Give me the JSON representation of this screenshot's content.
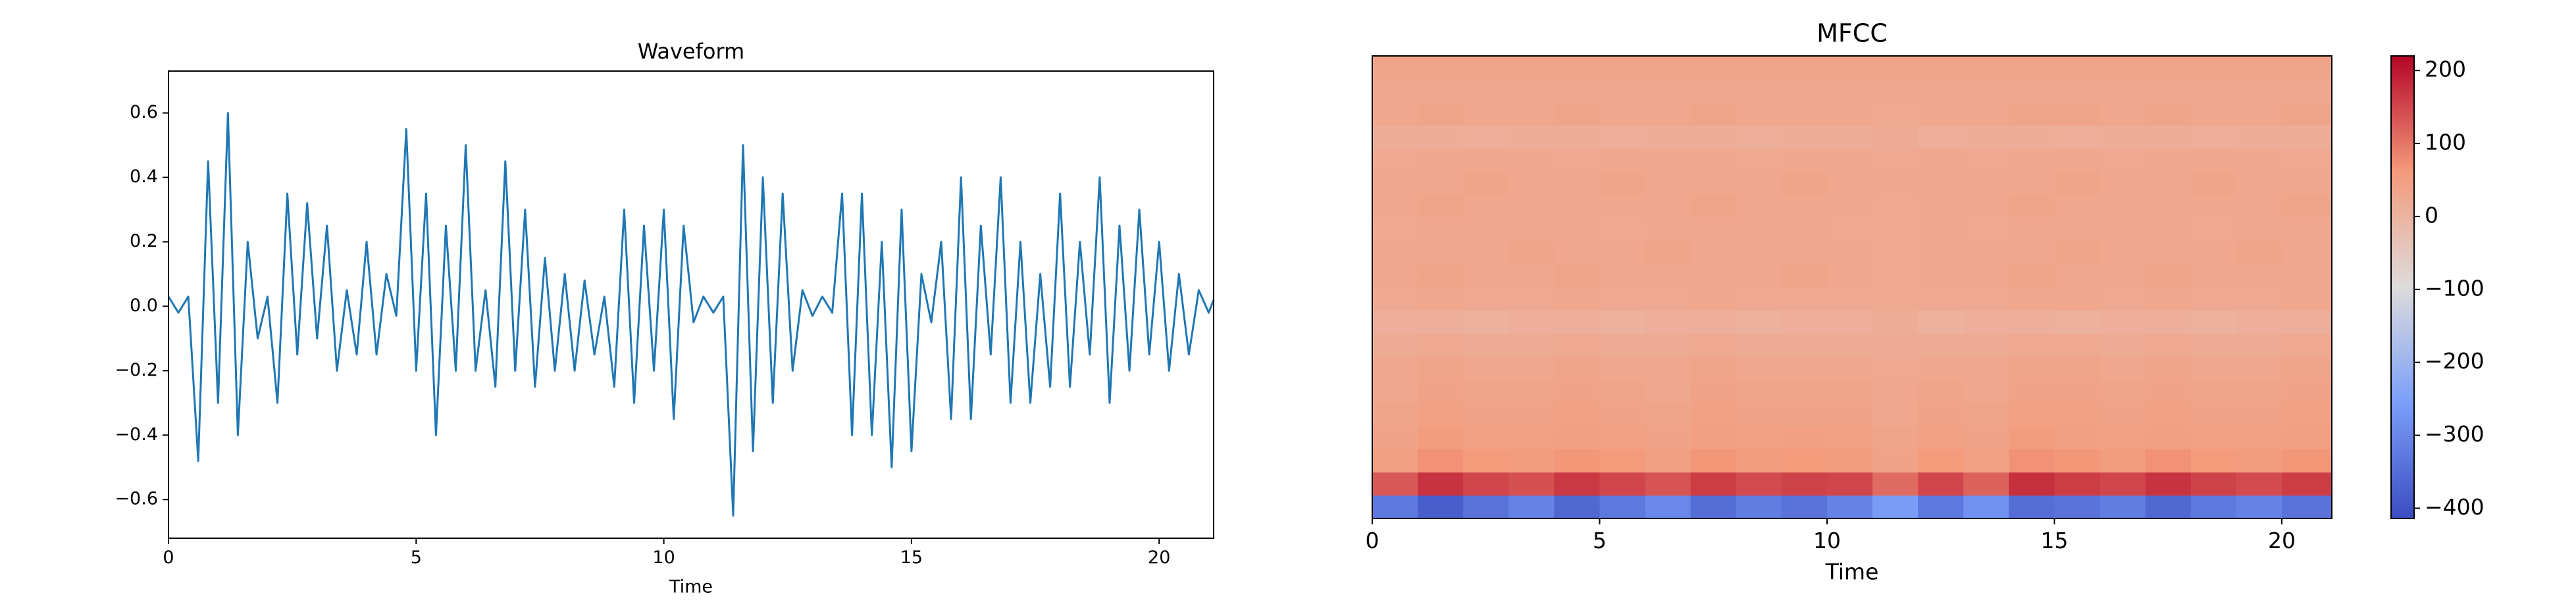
{
  "chart_data": [
    {
      "type": "line",
      "title": "Waveform",
      "xlabel": "Time",
      "color": "#1f77b4",
      "x": [
        0,
        0.2,
        0.4,
        0.6,
        0.8,
        1.0,
        1.2,
        1.4,
        1.6,
        1.8,
        2.0,
        2.2,
        2.4,
        2.6,
        2.8,
        3.0,
        3.2,
        3.4,
        3.6,
        3.8,
        4.0,
        4.2,
        4.4,
        4.6,
        4.8,
        5.0,
        5.2,
        5.4,
        5.6,
        5.8,
        6.0,
        6.2,
        6.4,
        6.6,
        6.8,
        7.0,
        7.2,
        7.4,
        7.6,
        7.8,
        8.0,
        8.2,
        8.4,
        8.6,
        8.8,
        9.0,
        9.2,
        9.4,
        9.6,
        9.8,
        10.0,
        10.2,
        10.4,
        10.6,
        10.8,
        11.0,
        11.2,
        11.4,
        11.6,
        11.8,
        12.0,
        12.2,
        12.4,
        12.6,
        12.8,
        13.0,
        13.2,
        13.4,
        13.6,
        13.8,
        14.0,
        14.2,
        14.4,
        14.6,
        14.8,
        15.0,
        15.2,
        15.4,
        15.6,
        15.8,
        16.0,
        16.2,
        16.4,
        16.6,
        16.8,
        17.0,
        17.2,
        17.4,
        17.6,
        17.8,
        18.0,
        18.2,
        18.4,
        18.6,
        18.8,
        19.0,
        19.2,
        19.4,
        19.6,
        19.8,
        20.0,
        20.2,
        20.4,
        20.6,
        20.8,
        21.0,
        21.1
      ],
      "values": [
        0.03,
        -0.02,
        0.03,
        -0.48,
        0.45,
        -0.3,
        0.6,
        -0.4,
        0.2,
        -0.1,
        0.03,
        -0.3,
        0.35,
        -0.15,
        0.32,
        -0.1,
        0.25,
        -0.2,
        0.05,
        -0.15,
        0.2,
        -0.15,
        0.1,
        -0.03,
        0.55,
        -0.2,
        0.35,
        -0.4,
        0.25,
        -0.2,
        0.5,
        -0.2,
        0.05,
        -0.25,
        0.45,
        -0.2,
        0.3,
        -0.25,
        0.15,
        -0.2,
        0.1,
        -0.2,
        0.08,
        -0.15,
        0.03,
        -0.25,
        0.3,
        -0.3,
        0.25,
        -0.2,
        0.3,
        -0.35,
        0.25,
        -0.05,
        0.03,
        -0.02,
        0.03,
        -0.65,
        0.5,
        -0.45,
        0.4,
        -0.3,
        0.35,
        -0.2,
        0.05,
        -0.03,
        0.03,
        -0.02,
        0.35,
        -0.4,
        0.35,
        -0.4,
        0.2,
        -0.5,
        0.3,
        -0.45,
        0.1,
        -0.05,
        0.2,
        -0.35,
        0.4,
        -0.35,
        0.25,
        -0.15,
        0.4,
        -0.3,
        0.2,
        -0.3,
        0.1,
        -0.25,
        0.35,
        -0.25,
        0.2,
        -0.15,
        0.4,
        -0.3,
        0.25,
        -0.2,
        0.3,
        -0.15,
        0.2,
        -0.2,
        0.1,
        -0.15,
        0.05,
        -0.02,
        0.02
      ],
      "xlim": [
        0,
        21.1
      ],
      "xticks": [
        0,
        5,
        10,
        15,
        20
      ],
      "ylim": [
        -0.72,
        0.73
      ],
      "yticks": [
        {
          "value": -0.6,
          "label": "−0.6"
        },
        {
          "value": -0.4,
          "label": "−0.4"
        },
        {
          "value": -0.2,
          "label": "−0.2"
        },
        {
          "value": 0,
          "label": "0.0"
        },
        0.2,
        0.4,
        0.6
      ]
    },
    {
      "type": "heatmap",
      "title": "MFCC",
      "xlabel": "Time",
      "colormap": "coolwarm",
      "x": [
        0,
        1,
        2,
        3,
        4,
        5,
        6,
        7,
        8,
        9,
        10,
        11,
        12,
        13,
        14,
        15,
        16,
        17,
        18,
        19,
        20
      ],
      "xlim": [
        0,
        21.1
      ],
      "xticks": [
        0,
        5,
        10,
        15,
        20
      ],
      "values": [
        [
          -330,
          -380,
          -340,
          -310,
          -360,
          -330,
          -300,
          -350,
          -320,
          -340,
          -310,
          -260,
          -330,
          -280,
          -350,
          -340,
          -320,
          -360,
          -330,
          -310,
          -340
        ],
        [
          130,
          170,
          150,
          140,
          165,
          150,
          135,
          160,
          145,
          155,
          150,
          110,
          150,
          120,
          175,
          160,
          150,
          170,
          155,
          145,
          160
        ],
        [
          50,
          70,
          60,
          55,
          65,
          60,
          50,
          65,
          55,
          60,
          55,
          40,
          60,
          45,
          70,
          65,
          55,
          70,
          60,
          55,
          65
        ],
        [
          40,
          55,
          45,
          45,
          50,
          45,
          40,
          50,
          45,
          50,
          45,
          35,
          45,
          40,
          55,
          50,
          45,
          50,
          45,
          45,
          50
        ],
        [
          35,
          45,
          40,
          40,
          45,
          40,
          35,
          45,
          40,
          40,
          40,
          30,
          40,
          35,
          45,
          45,
          40,
          45,
          40,
          40,
          45
        ],
        [
          30,
          40,
          35,
          35,
          40,
          35,
          30,
          40,
          35,
          35,
          35,
          30,
          35,
          30,
          40,
          40,
          35,
          40,
          35,
          35,
          40
        ],
        [
          30,
          35,
          30,
          30,
          35,
          30,
          30,
          35,
          30,
          30,
          30,
          25,
          30,
          30,
          35,
          35,
          30,
          35,
          30,
          30,
          35
        ],
        [
          20,
          25,
          20,
          20,
          25,
          20,
          20,
          25,
          20,
          20,
          20,
          20,
          20,
          20,
          25,
          25,
          20,
          25,
          20,
          20,
          25
        ],
        [
          10,
          10,
          5,
          10,
          10,
          5,
          10,
          10,
          5,
          10,
          10,
          15,
          5,
          10,
          10,
          5,
          10,
          10,
          5,
          10,
          10
        ],
        [
          25,
          30,
          25,
          25,
          30,
          25,
          25,
          30,
          25,
          25,
          25,
          25,
          25,
          25,
          30,
          30,
          25,
          30,
          25,
          25,
          30
        ],
        [
          30,
          35,
          30,
          30,
          35,
          30,
          30,
          30,
          30,
          35,
          30,
          25,
          30,
          30,
          35,
          30,
          30,
          35,
          30,
          30,
          30
        ],
        [
          30,
          30,
          30,
          35,
          30,
          30,
          35,
          30,
          30,
          30,
          30,
          25,
          30,
          30,
          30,
          35,
          30,
          30,
          30,
          35,
          30
        ],
        [
          25,
          30,
          30,
          30,
          30,
          25,
          30,
          30,
          30,
          30,
          25,
          25,
          30,
          25,
          30,
          30,
          30,
          30,
          25,
          30,
          30
        ],
        [
          30,
          35,
          30,
          30,
          30,
          30,
          30,
          35,
          30,
          30,
          30,
          25,
          30,
          30,
          35,
          30,
          30,
          30,
          30,
          30,
          35
        ],
        [
          30,
          30,
          35,
          30,
          30,
          35,
          30,
          30,
          30,
          35,
          30,
          30,
          30,
          30,
          30,
          35,
          30,
          30,
          35,
          30,
          30
        ],
        [
          25,
          30,
          30,
          30,
          25,
          30,
          30,
          30,
          25,
          30,
          30,
          25,
          30,
          25,
          30,
          30,
          25,
          30,
          30,
          30,
          25
        ],
        [
          15,
          15,
          10,
          15,
          15,
          10,
          15,
          15,
          10,
          15,
          15,
          20,
          10,
          15,
          15,
          10,
          15,
          15,
          10,
          15,
          15
        ],
        [
          30,
          35,
          30,
          30,
          35,
          30,
          30,
          35,
          30,
          30,
          30,
          25,
          30,
          30,
          35,
          35,
          30,
          35,
          30,
          30,
          35
        ],
        [
          30,
          30,
          30,
          30,
          30,
          30,
          30,
          30,
          30,
          30,
          30,
          30,
          30,
          30,
          30,
          30,
          30,
          30,
          30,
          30,
          30
        ],
        [
          35,
          35,
          35,
          35,
          35,
          35,
          35,
          35,
          35,
          35,
          35,
          35,
          35,
          35,
          35,
          35,
          35,
          35,
          35,
          35,
          35
        ]
      ],
      "clim": [
        -414,
        220
      ],
      "cticks": [
        {
          "value": -400,
          "label": "−400"
        },
        {
          "value": -300,
          "label": "−300"
        },
        {
          "value": -200,
          "label": "−200"
        },
        {
          "value": -100,
          "label": "−100"
        },
        0,
        100,
        200
      ]
    }
  ]
}
